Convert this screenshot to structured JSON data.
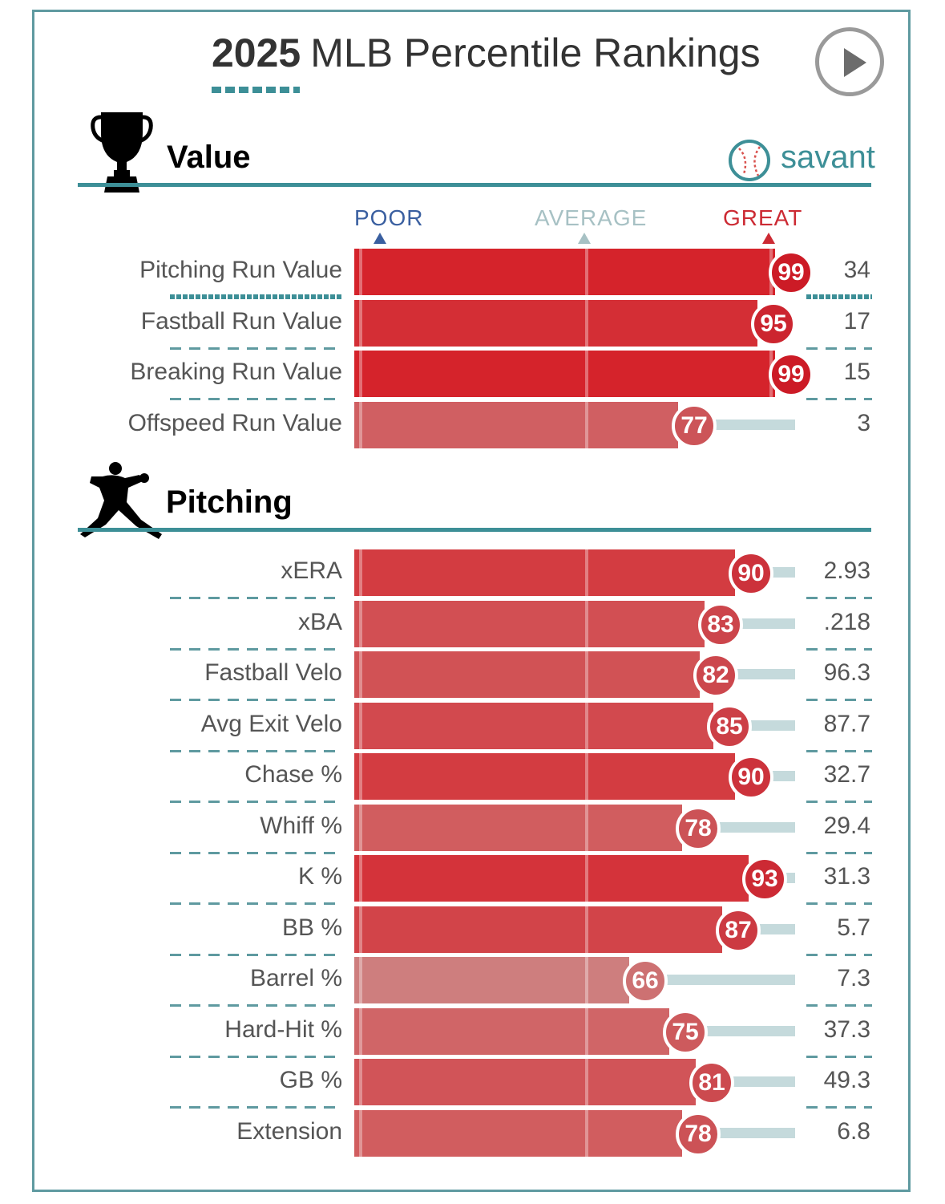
{
  "title": {
    "year": "2025",
    "text": "MLB Percentile Rankings"
  },
  "brand": "savant",
  "colors": {
    "accent": "#3d8f97",
    "poor": "#3a5fa0",
    "average": "#a7c1c4",
    "great": "#cc2a33"
  },
  "scale_labels": {
    "poor": "POOR",
    "average": "AVERAGE",
    "great": "GREAT"
  },
  "chart_data": [
    {
      "type": "bar",
      "title": "Value",
      "categories": [
        "Pitching Run Value",
        "Fastball Run Value",
        "Breaking Run Value",
        "Offspeed Run Value"
      ],
      "percentiles": [
        99,
        95,
        99,
        77
      ],
      "values": [
        "34",
        "17",
        "15",
        "3"
      ],
      "xlim": [
        0,
        100
      ]
    },
    {
      "type": "bar",
      "title": "Pitching",
      "categories": [
        "xERA",
        "xBA",
        "Fastball Velo",
        "Avg Exit Velo",
        "Chase %",
        "Whiff %",
        "K %",
        "BB %",
        "Barrel %",
        "Hard-Hit %",
        "GB %",
        "Extension"
      ],
      "percentiles": [
        90,
        83,
        82,
        85,
        90,
        78,
        93,
        87,
        66,
        75,
        81,
        78
      ],
      "values": [
        "2.93",
        ".218",
        "96.3",
        "87.7",
        "32.7",
        "29.4",
        "31.3",
        "5.7",
        "7.3",
        "37.3",
        "49.3",
        "6.8"
      ],
      "xlim": [
        0,
        100
      ]
    }
  ]
}
